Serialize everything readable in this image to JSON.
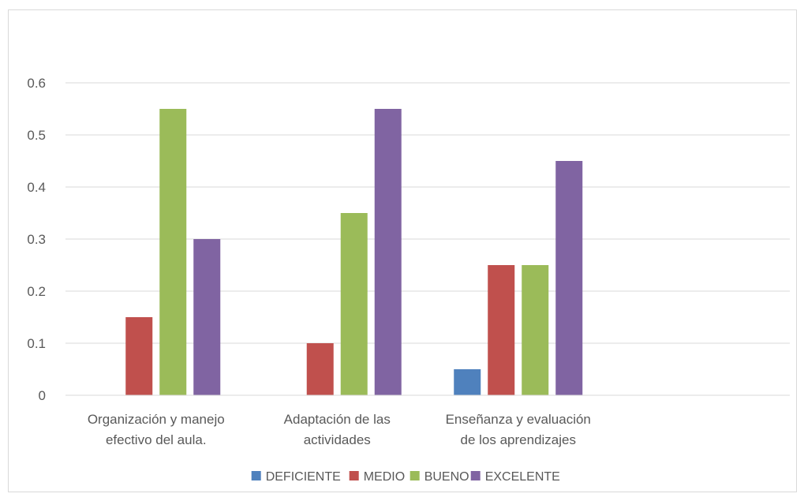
{
  "chart_data": {
    "type": "bar",
    "title": "",
    "xlabel": "",
    "ylabel": "",
    "ylim": [
      0,
      0.6
    ],
    "yticks": [
      "0",
      "0.1",
      "0.2",
      "0.3",
      "0.4",
      "0.5",
      "0.6"
    ],
    "grid": true,
    "legend_position": "bottom",
    "categories": [
      [
        "Organización y manejo",
        "efectivo del aula."
      ],
      [
        "Adaptación de las",
        "actividades"
      ],
      [
        "Enseñanza y evaluación",
        "de los aprendizajes"
      ]
    ],
    "series": [
      {
        "name": "DEFICIENTE",
        "color": "#4f81bd",
        "values": [
          0,
          0,
          0.05
        ]
      },
      {
        "name": "MEDIO",
        "color": "#c0504d",
        "values": [
          0.15,
          0.1,
          0.25
        ]
      },
      {
        "name": "BUENO",
        "color": "#9bbb59",
        "values": [
          0.55,
          0.35,
          0.25
        ]
      },
      {
        "name": "EXCELENTE",
        "color": "#8064a2",
        "values": [
          0.3,
          0.55,
          0.45
        ]
      }
    ]
  }
}
